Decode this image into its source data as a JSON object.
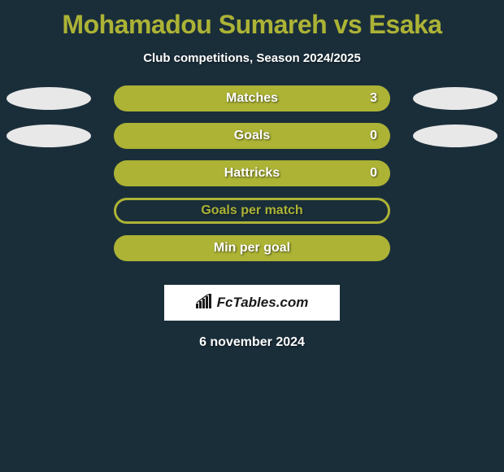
{
  "title": "Mohamadou Sumareh vs Esaka",
  "subtitle": "Club competitions, Season 2024/2025",
  "stats": [
    {
      "label": "Matches",
      "value": "3",
      "show_left_ellipse": true,
      "show_right_ellipse": true,
      "filled": true,
      "has_value": true
    },
    {
      "label": "Goals",
      "value": "0",
      "show_left_ellipse": true,
      "show_right_ellipse": true,
      "filled": true,
      "has_value": true
    },
    {
      "label": "Hattricks",
      "value": "0",
      "show_left_ellipse": false,
      "show_right_ellipse": false,
      "filled": true,
      "has_value": true
    },
    {
      "label": "Goals per match",
      "value": "",
      "show_left_ellipse": false,
      "show_right_ellipse": false,
      "filled": false,
      "has_value": false
    },
    {
      "label": "Min per goal",
      "value": "",
      "show_left_ellipse": false,
      "show_right_ellipse": false,
      "filled": true,
      "has_value": false
    }
  ],
  "brand": "FcTables.com",
  "date": "6 november 2024",
  "colors": {
    "background": "#1a2e3a",
    "accent": "#acb335",
    "ellipse": "#e8e8e8",
    "text": "#ffffff"
  }
}
